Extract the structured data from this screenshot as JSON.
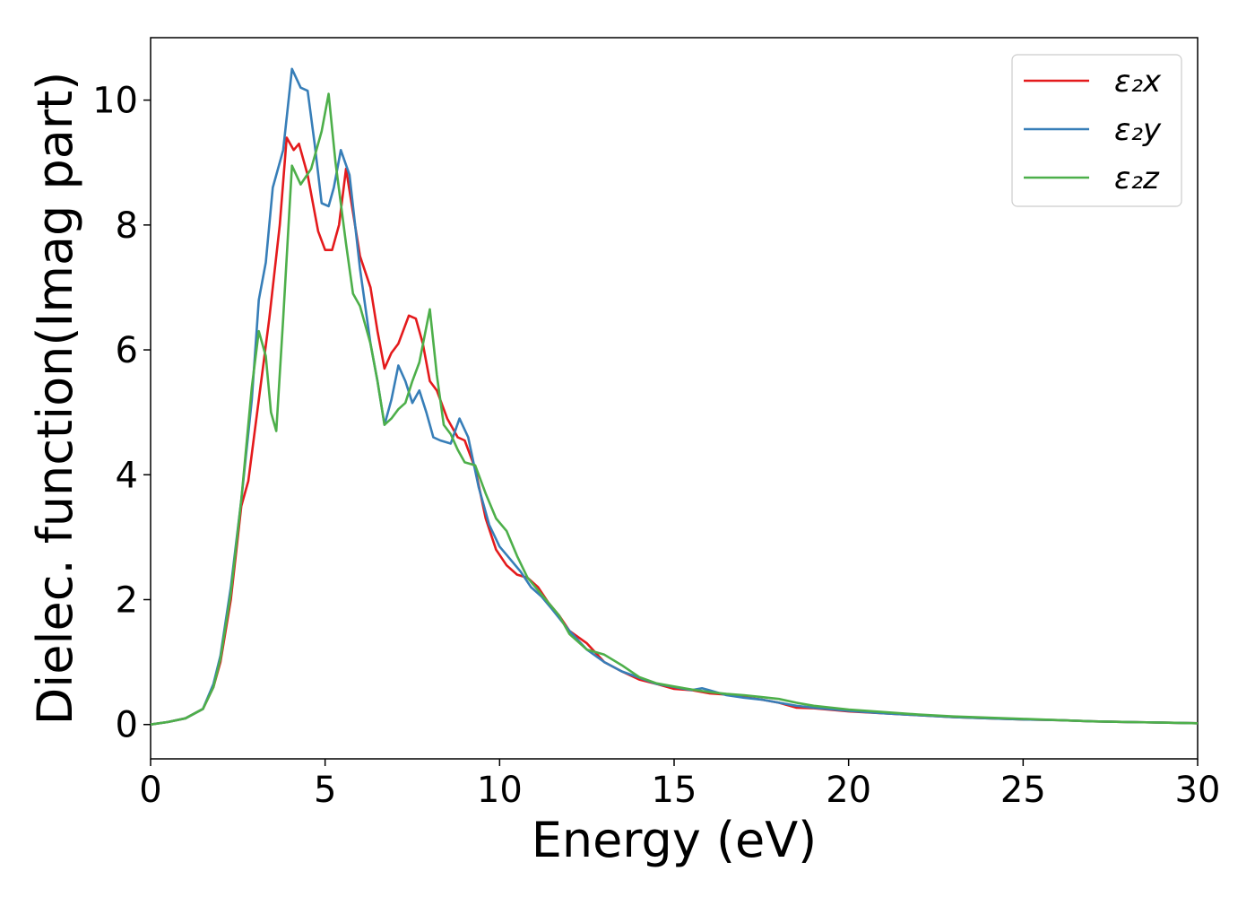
{
  "chart_data": {
    "type": "line",
    "xlabel": "Energy (eV)",
    "ylabel": "Dielec. function(Imag part)",
    "xlim": [
      0,
      30
    ],
    "ylim": [
      -0.55,
      11.0
    ],
    "xticks": [
      0,
      5,
      10,
      15,
      20,
      25,
      30
    ],
    "yticks": [
      0,
      2,
      4,
      6,
      8,
      10
    ],
    "x_tick_labels": [
      "0",
      "5",
      "10",
      "15",
      "20",
      "25",
      "30"
    ],
    "y_tick_labels": [
      "0",
      "2",
      "4",
      "6",
      "8",
      "10"
    ],
    "grid": false,
    "legend_position": "top-right",
    "series": [
      {
        "name": "ε₂x",
        "color": "#e41a1c",
        "points": [
          [
            0,
            0
          ],
          [
            0.5,
            0.04
          ],
          [
            1,
            0.1
          ],
          [
            1.5,
            0.25
          ],
          [
            1.8,
            0.6
          ],
          [
            2,
            1.0
          ],
          [
            2.3,
            2.0
          ],
          [
            2.6,
            3.5
          ],
          [
            2.8,
            3.9
          ],
          [
            3.1,
            5.2
          ],
          [
            3.4,
            6.5
          ],
          [
            3.7,
            8.0
          ],
          [
            3.9,
            9.4
          ],
          [
            4.1,
            9.2
          ],
          [
            4.25,
            9.3
          ],
          [
            4.5,
            8.8
          ],
          [
            4.8,
            7.9
          ],
          [
            5,
            7.6
          ],
          [
            5.2,
            7.6
          ],
          [
            5.4,
            8.0
          ],
          [
            5.6,
            8.9
          ],
          [
            5.8,
            8.2
          ],
          [
            6,
            7.5
          ],
          [
            6.3,
            7.0
          ],
          [
            6.5,
            6.3
          ],
          [
            6.7,
            5.7
          ],
          [
            6.9,
            5.95
          ],
          [
            7.1,
            6.1
          ],
          [
            7.4,
            6.55
          ],
          [
            7.6,
            6.5
          ],
          [
            7.8,
            6.1
          ],
          [
            8,
            5.5
          ],
          [
            8.2,
            5.35
          ],
          [
            8.5,
            4.9
          ],
          [
            8.8,
            4.6
          ],
          [
            9,
            4.55
          ],
          [
            9.3,
            4.1
          ],
          [
            9.6,
            3.3
          ],
          [
            9.9,
            2.8
          ],
          [
            10.2,
            2.55
          ],
          [
            10.5,
            2.4
          ],
          [
            10.8,
            2.35
          ],
          [
            11.1,
            2.2
          ],
          [
            11.4,
            1.95
          ],
          [
            11.7,
            1.75
          ],
          [
            12,
            1.5
          ],
          [
            12.5,
            1.3
          ],
          [
            13,
            1.0
          ],
          [
            13.5,
            0.85
          ],
          [
            14,
            0.72
          ],
          [
            14.5,
            0.65
          ],
          [
            15,
            0.57
          ],
          [
            15.5,
            0.55
          ],
          [
            16,
            0.5
          ],
          [
            16.5,
            0.48
          ],
          [
            17,
            0.44
          ],
          [
            17.5,
            0.4
          ],
          [
            18,
            0.35
          ],
          [
            18.5,
            0.27
          ],
          [
            19,
            0.26
          ],
          [
            20,
            0.21
          ],
          [
            21,
            0.18
          ],
          [
            22,
            0.15
          ],
          [
            23,
            0.12
          ],
          [
            24,
            0.1
          ],
          [
            25,
            0.08
          ],
          [
            26,
            0.07
          ],
          [
            27,
            0.05
          ],
          [
            28,
            0.04
          ],
          [
            29,
            0.03
          ],
          [
            30,
            0.02
          ]
        ]
      },
      {
        "name": "ε₂y",
        "color": "#377eb8",
        "points": [
          [
            0,
            0
          ],
          [
            0.5,
            0.04
          ],
          [
            1,
            0.1
          ],
          [
            1.5,
            0.25
          ],
          [
            1.8,
            0.65
          ],
          [
            2,
            1.1
          ],
          [
            2.3,
            2.2
          ],
          [
            2.6,
            3.6
          ],
          [
            2.9,
            5.2
          ],
          [
            3.1,
            6.8
          ],
          [
            3.3,
            7.4
          ],
          [
            3.5,
            8.6
          ],
          [
            3.8,
            9.2
          ],
          [
            4.05,
            10.5
          ],
          [
            4.3,
            10.2
          ],
          [
            4.5,
            10.15
          ],
          [
            4.7,
            9.3
          ],
          [
            4.9,
            8.35
          ],
          [
            5.1,
            8.3
          ],
          [
            5.25,
            8.6
          ],
          [
            5.45,
            9.2
          ],
          [
            5.7,
            8.8
          ],
          [
            6,
            7.3
          ],
          [
            6.3,
            6.1
          ],
          [
            6.5,
            5.5
          ],
          [
            6.7,
            4.8
          ],
          [
            6.9,
            5.2
          ],
          [
            7.1,
            5.75
          ],
          [
            7.3,
            5.5
          ],
          [
            7.5,
            5.15
          ],
          [
            7.7,
            5.35
          ],
          [
            7.9,
            5.0
          ],
          [
            8.1,
            4.6
          ],
          [
            8.3,
            4.55
          ],
          [
            8.6,
            4.5
          ],
          [
            8.85,
            4.9
          ],
          [
            9.1,
            4.6
          ],
          [
            9.4,
            3.8
          ],
          [
            9.7,
            3.2
          ],
          [
            10,
            2.85
          ],
          [
            10.3,
            2.65
          ],
          [
            10.6,
            2.45
          ],
          [
            10.9,
            2.2
          ],
          [
            11.2,
            2.05
          ],
          [
            11.5,
            1.85
          ],
          [
            12,
            1.5
          ],
          [
            12.5,
            1.2
          ],
          [
            13,
            1.0
          ],
          [
            13.5,
            0.85
          ],
          [
            14,
            0.75
          ],
          [
            14.5,
            0.65
          ],
          [
            15,
            0.6
          ],
          [
            15.5,
            0.55
          ],
          [
            15.8,
            0.58
          ],
          [
            16,
            0.55
          ],
          [
            16.5,
            0.47
          ],
          [
            17,
            0.43
          ],
          [
            17.5,
            0.4
          ],
          [
            18,
            0.35
          ],
          [
            18.5,
            0.3
          ],
          [
            19,
            0.27
          ],
          [
            20,
            0.22
          ],
          [
            21,
            0.18
          ],
          [
            22,
            0.15
          ],
          [
            23,
            0.12
          ],
          [
            24,
            0.1
          ],
          [
            25,
            0.08
          ],
          [
            26,
            0.07
          ],
          [
            27,
            0.05
          ],
          [
            28,
            0.04
          ],
          [
            29,
            0.03
          ],
          [
            30,
            0.02
          ]
        ]
      },
      {
        "name": "ε₂z",
        "color": "#4daf4a",
        "points": [
          [
            0,
            0
          ],
          [
            0.5,
            0.04
          ],
          [
            1,
            0.1
          ],
          [
            1.5,
            0.25
          ],
          [
            1.8,
            0.6
          ],
          [
            2,
            1.05
          ],
          [
            2.3,
            2.1
          ],
          [
            2.6,
            3.6
          ],
          [
            2.9,
            5.4
          ],
          [
            3.1,
            6.3
          ],
          [
            3.3,
            5.9
          ],
          [
            3.45,
            5.0
          ],
          [
            3.6,
            4.7
          ],
          [
            3.8,
            6.5
          ],
          [
            4.05,
            8.95
          ],
          [
            4.3,
            8.65
          ],
          [
            4.6,
            8.9
          ],
          [
            4.9,
            9.5
          ],
          [
            5.1,
            10.1
          ],
          [
            5.3,
            9.0
          ],
          [
            5.6,
            7.7
          ],
          [
            5.8,
            6.9
          ],
          [
            6.0,
            6.7
          ],
          [
            6.3,
            6.1
          ],
          [
            6.5,
            5.5
          ],
          [
            6.7,
            4.8
          ],
          [
            6.9,
            4.9
          ],
          [
            7.1,
            5.05
          ],
          [
            7.3,
            5.15
          ],
          [
            7.5,
            5.5
          ],
          [
            7.7,
            5.8
          ],
          [
            8.0,
            6.65
          ],
          [
            8.2,
            5.6
          ],
          [
            8.4,
            4.8
          ],
          [
            8.6,
            4.65
          ],
          [
            8.8,
            4.4
          ],
          [
            9,
            4.2
          ],
          [
            9.3,
            4.15
          ],
          [
            9.6,
            3.7
          ],
          [
            9.9,
            3.3
          ],
          [
            10.2,
            3.1
          ],
          [
            10.5,
            2.7
          ],
          [
            10.8,
            2.35
          ],
          [
            11.1,
            2.15
          ],
          [
            11.4,
            1.95
          ],
          [
            11.7,
            1.75
          ],
          [
            12,
            1.45
          ],
          [
            12.5,
            1.2
          ],
          [
            13,
            1.12
          ],
          [
            13.5,
            0.95
          ],
          [
            14,
            0.76
          ],
          [
            14.5,
            0.66
          ],
          [
            15,
            0.61
          ],
          [
            15.5,
            0.56
          ],
          [
            16,
            0.52
          ],
          [
            16.5,
            0.49
          ],
          [
            17,
            0.47
          ],
          [
            17.5,
            0.44
          ],
          [
            18,
            0.41
          ],
          [
            18.5,
            0.35
          ],
          [
            19,
            0.3
          ],
          [
            20,
            0.24
          ],
          [
            21,
            0.2
          ],
          [
            22,
            0.16
          ],
          [
            23,
            0.13
          ],
          [
            24,
            0.11
          ],
          [
            25,
            0.09
          ],
          [
            26,
            0.07
          ],
          [
            27,
            0.05
          ],
          [
            28,
            0.04
          ],
          [
            29,
            0.03
          ],
          [
            30,
            0.02
          ]
        ]
      }
    ]
  }
}
